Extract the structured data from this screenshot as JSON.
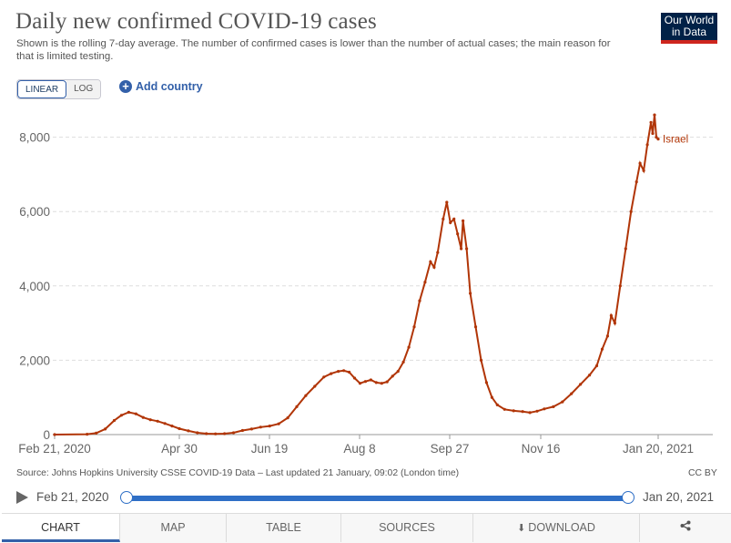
{
  "header": {
    "title": "Daily new confirmed COVID-19 cases",
    "subtitle": "Shown is the rolling 7-day average. The number of confirmed cases is lower than the number of actual cases; the main reason for that is limited testing.",
    "logo_line1": "Our World",
    "logo_line2": "in Data"
  },
  "controls": {
    "scale_linear": "LINEAR",
    "scale_log": "LOG",
    "add_country": "Add country"
  },
  "chart_data": {
    "type": "line",
    "title": "Daily new confirmed COVID-19 cases",
    "x_ticks": [
      "Feb 21, 2020",
      "Apr 30",
      "Jun 19",
      "Aug 8",
      "Sep 27",
      "Nov 16",
      "Jan 20, 2021"
    ],
    "y_ticks": [
      "0",
      "2,000",
      "4,000",
      "6,000",
      "8,000"
    ],
    "ylim": [
      0,
      8700
    ],
    "grid": "horizontal dashed",
    "series": [
      {
        "name": "Israel",
        "color": "#b13507",
        "points": [
          [
            "2020-02-21",
            0
          ],
          [
            "2020-03-10",
            10
          ],
          [
            "2020-03-15",
            40
          ],
          [
            "2020-03-20",
            150
          ],
          [
            "2020-03-25",
            380
          ],
          [
            "2020-03-29",
            520
          ],
          [
            "2020-04-02",
            600
          ],
          [
            "2020-04-06",
            560
          ],
          [
            "2020-04-10",
            460
          ],
          [
            "2020-04-14",
            400
          ],
          [
            "2020-04-18",
            360
          ],
          [
            "2020-04-22",
            300
          ],
          [
            "2020-04-26",
            230
          ],
          [
            "2020-04-30",
            160
          ],
          [
            "2020-05-05",
            100
          ],
          [
            "2020-05-10",
            50
          ],
          [
            "2020-05-15",
            25
          ],
          [
            "2020-05-20",
            20
          ],
          [
            "2020-05-25",
            25
          ],
          [
            "2020-05-30",
            50
          ],
          [
            "2020-06-04",
            110
          ],
          [
            "2020-06-09",
            150
          ],
          [
            "2020-06-14",
            200
          ],
          [
            "2020-06-19",
            230
          ],
          [
            "2020-06-24",
            290
          ],
          [
            "2020-06-29",
            450
          ],
          [
            "2020-07-04",
            750
          ],
          [
            "2020-07-09",
            1050
          ],
          [
            "2020-07-14",
            1300
          ],
          [
            "2020-07-19",
            1550
          ],
          [
            "2020-07-23",
            1640
          ],
          [
            "2020-07-27",
            1700
          ],
          [
            "2020-07-30",
            1720
          ],
          [
            "2020-08-02",
            1680
          ],
          [
            "2020-08-05",
            1520
          ],
          [
            "2020-08-08",
            1380
          ],
          [
            "2020-08-11",
            1430
          ],
          [
            "2020-08-14",
            1470
          ],
          [
            "2020-08-17",
            1400
          ],
          [
            "2020-08-20",
            1380
          ],
          [
            "2020-08-23",
            1420
          ],
          [
            "2020-08-26",
            1570
          ],
          [
            "2020-08-29",
            1700
          ],
          [
            "2020-09-01",
            1950
          ],
          [
            "2020-09-04",
            2350
          ],
          [
            "2020-09-07",
            2900
          ],
          [
            "2020-09-10",
            3600
          ],
          [
            "2020-09-13",
            4100
          ],
          [
            "2020-09-16",
            4650
          ],
          [
            "2020-09-18",
            4500
          ],
          [
            "2020-09-20",
            4900
          ],
          [
            "2020-09-23",
            5800
          ],
          [
            "2020-09-25",
            6250
          ],
          [
            "2020-09-27",
            5700
          ],
          [
            "2020-09-29",
            5800
          ],
          [
            "2020-10-01",
            5400
          ],
          [
            "2020-10-03",
            5000
          ],
          [
            "2020-10-04",
            5750
          ],
          [
            "2020-10-06",
            5000
          ],
          [
            "2020-10-08",
            3800
          ],
          [
            "2020-10-11",
            2900
          ],
          [
            "2020-10-14",
            2000
          ],
          [
            "2020-10-17",
            1400
          ],
          [
            "2020-10-20",
            1000
          ],
          [
            "2020-10-23",
            800
          ],
          [
            "2020-10-27",
            680
          ],
          [
            "2020-11-01",
            640
          ],
          [
            "2020-11-06",
            620
          ],
          [
            "2020-11-10",
            590
          ],
          [
            "2020-11-14",
            630
          ],
          [
            "2020-11-18",
            690
          ],
          [
            "2020-11-23",
            750
          ],
          [
            "2020-11-28",
            880
          ],
          [
            "2020-12-03",
            1100
          ],
          [
            "2020-12-08",
            1350
          ],
          [
            "2020-12-13",
            1600
          ],
          [
            "2020-12-17",
            1850
          ],
          [
            "2020-12-20",
            2300
          ],
          [
            "2020-12-23",
            2650
          ],
          [
            "2020-12-25",
            3200
          ],
          [
            "2020-12-27",
            3000
          ],
          [
            "2020-12-30",
            4000
          ],
          [
            "2021-01-02",
            5000
          ],
          [
            "2021-01-05",
            6000
          ],
          [
            "2021-01-08",
            6800
          ],
          [
            "2021-01-10",
            7300
          ],
          [
            "2021-01-12",
            7100
          ],
          [
            "2021-01-14",
            7800
          ],
          [
            "2021-01-16",
            8400
          ],
          [
            "2021-01-17",
            8100
          ],
          [
            "2021-01-18",
            8600
          ],
          [
            "2021-01-19",
            8000
          ],
          [
            "2021-01-20",
            7950
          ]
        ]
      }
    ]
  },
  "footer": {
    "source": "Source: Johns Hopkins University CSSE COVID-19 Data – Last updated 21 January, 09:02 (London time)",
    "license": "CC BY"
  },
  "timeline": {
    "start": "Feb 21, 2020",
    "end": "Jan 20, 2021"
  },
  "tabs": [
    "CHART",
    "MAP",
    "TABLE",
    "SOURCES",
    "DOWNLOAD"
  ]
}
